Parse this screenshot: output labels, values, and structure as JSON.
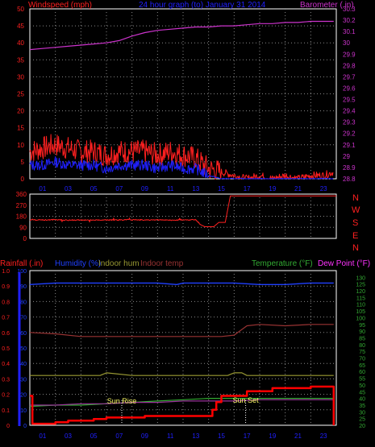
{
  "header": {
    "windspeed_label": "Windspeed (mph)",
    "title": "24 hour graph (to)   January 31 2014",
    "barometer_label": "Barometer (.in)"
  },
  "footer": {
    "rainfall_label": "Rainfall (.in)",
    "humidity_label": "Humidity (%)",
    "indoor_hum_label": "Indoor hum",
    "indoor_temp_label": "Indoor temp",
    "temperature_label": "Temperature (°F)",
    "dew_point_label": "Dew Point (°F)"
  },
  "annotations": {
    "sunrise": "Sun Rise",
    "sunset": "Sun Set"
  },
  "colors": {
    "windspeed": "#ff2020",
    "gust": "#ff0000",
    "avg_wind": "#2020ff",
    "barometer": "#cc33cc",
    "direction": "#ff2020",
    "humidity": "#2040ff",
    "indoor_hum": "#999933",
    "indoor_temp": "#993333",
    "temperature": "#33aa33",
    "dewpoint": "#993399",
    "rainfall": "#ff0000",
    "grid": "#888888"
  },
  "chart_data": [
    {
      "type": "line",
      "name": "wind-barometer",
      "x_ticks": [
        "01",
        "03",
        "05",
        "07",
        "09",
        "11",
        "13",
        "15",
        "17",
        "19",
        "21",
        "23"
      ],
      "xlim": [
        0,
        24
      ],
      "y_left": {
        "label": "Windspeed (mph)",
        "ylim": [
          0,
          50
        ],
        "ticks": [
          0,
          5,
          10,
          15,
          20,
          25,
          30,
          35,
          40,
          45,
          50
        ]
      },
      "y_right": {
        "label": "Barometer (.in)",
        "ylim": [
          28.8,
          30.3
        ],
        "ticks": [
          "28.8",
          "28.9",
          "29",
          "29.1",
          "29.2",
          "29.3",
          "29.4",
          "29.5",
          "29.6",
          "29.7",
          "29.8",
          "29.9",
          "30",
          "30.1",
          "30.2",
          "30.3"
        ]
      },
      "series": [
        {
          "key": "barometer",
          "axis": "right",
          "x": [
            0,
            1,
            2,
            3,
            4,
            5,
            6,
            7,
            8,
            9,
            10,
            11,
            12,
            13,
            14,
            15,
            16,
            17,
            18,
            19,
            20,
            21,
            22,
            23,
            23.8
          ],
          "y": [
            29.94,
            29.95,
            29.96,
            29.97,
            29.98,
            29.99,
            30.0,
            30.02,
            30.06,
            30.09,
            30.11,
            30.12,
            30.13,
            30.14,
            30.14,
            30.15,
            30.15,
            30.16,
            30.17,
            30.17,
            30.18,
            30.18,
            30.19,
            30.19,
            30.19
          ]
        },
        {
          "key": "gust",
          "axis": "left",
          "x": [
            0,
            1,
            2,
            3,
            4,
            5,
            6,
            7,
            8,
            9,
            10,
            11,
            12,
            13,
            14,
            15,
            16,
            17,
            18,
            19,
            20,
            21,
            22,
            23,
            23.8
          ],
          "y": [
            8,
            9,
            10,
            9,
            8,
            8,
            7,
            8,
            8,
            8,
            7,
            8,
            7,
            6,
            3,
            2,
            1,
            0,
            1,
            0,
            1,
            0,
            1,
            1,
            2
          ]
        },
        {
          "key": "avg_wind",
          "axis": "left",
          "x": [
            0,
            1,
            2,
            3,
            4,
            5,
            6,
            7,
            8,
            9,
            10,
            11,
            12,
            13,
            14,
            15,
            16,
            17,
            18,
            19,
            20,
            21,
            22,
            23,
            23.8
          ],
          "y": [
            4,
            4,
            5,
            4,
            4,
            4,
            3,
            4,
            4,
            4,
            3,
            4,
            3,
            3,
            1,
            0,
            0,
            0,
            0,
            0,
            0,
            0,
            0,
            0,
            0
          ]
        }
      ]
    },
    {
      "type": "line",
      "name": "wind-direction",
      "xlim": [
        0,
        24
      ],
      "y_left": {
        "ylim": [
          0,
          360
        ],
        "ticks": [
          0,
          90,
          180,
          270,
          360
        ]
      },
      "y_right_labels": [
        "N",
        "W",
        "S",
        "E",
        "N"
      ],
      "series": [
        {
          "key": "direction",
          "x": [
            0,
            1,
            2,
            3,
            4,
            5,
            6,
            7,
            8,
            9,
            10,
            11,
            12,
            13,
            13.4,
            13.7,
            14.4,
            14.8,
            15.3,
            15.7,
            24
          ],
          "y": [
            150,
            150,
            152,
            148,
            150,
            148,
            150,
            150,
            152,
            150,
            150,
            148,
            150,
            152,
            110,
            95,
            95,
            130,
            130,
            345,
            345
          ]
        }
      ]
    },
    {
      "type": "line",
      "name": "temperature-rain-humidity",
      "x_ticks": [
        "01",
        "03",
        "05",
        "07",
        "09",
        "11",
        "13",
        "15",
        "17",
        "19",
        "21",
        "23"
      ],
      "xlim": [
        0,
        24
      ],
      "y_left": {
        "label": "Rainfall (.in)",
        "ylim": [
          0,
          1.0
        ],
        "ticks": [
          "0",
          "0.1",
          "0.2",
          "0.3",
          "0.4",
          "0.5",
          "0.6",
          "0.7",
          "0.8",
          "0.9",
          "1.0"
        ]
      },
      "y_humidity": {
        "label": "Humidity (%)",
        "ylim": [
          0,
          100
        ],
        "ticks": [
          0,
          10,
          20,
          30,
          40,
          50,
          60,
          70,
          80,
          90,
          100
        ]
      },
      "y_right": {
        "label": "Temperature (°F)",
        "ylim": [
          20,
          135
        ],
        "ticks": [
          20,
          25,
          30,
          35,
          40,
          45,
          50,
          55,
          60,
          65,
          70,
          75,
          80,
          85,
          90,
          95,
          100,
          105,
          110,
          115,
          120,
          125,
          130
        ]
      },
      "series": [
        {
          "key": "humidity",
          "axis": "humidity",
          "x": [
            0,
            2,
            4,
            6,
            8,
            10,
            11.5,
            12,
            14,
            16,
            18,
            20,
            22,
            23.8
          ],
          "y": [
            91,
            92,
            92,
            92,
            92,
            92,
            91,
            92,
            92,
            92,
            91,
            91,
            92,
            92
          ]
        },
        {
          "key": "indoor_temp",
          "axis": "right",
          "x": [
            0,
            2,
            4,
            6,
            8,
            10,
            12,
            14,
            15,
            16,
            17,
            18,
            20,
            22,
            23.8
          ],
          "y": [
            89,
            88,
            86,
            86,
            86,
            86,
            86,
            86,
            86,
            87,
            94,
            95,
            94,
            95,
            95
          ]
        },
        {
          "key": "indoor_hum",
          "axis": "right",
          "x": [
            0,
            4.5,
            5,
            5.5,
            6,
            6,
            8,
            10,
            12,
            14,
            15.5,
            16,
            16.6,
            17,
            18,
            20,
            22,
            23.8
          ],
          "y": [
            57,
            57,
            57,
            57,
            59,
            59,
            57,
            57,
            57,
            57,
            57,
            59,
            59,
            57,
            57,
            57,
            57,
            57
          ]
        },
        {
          "key": "temperature",
          "axis": "right",
          "x": [
            0,
            2,
            4,
            6,
            8,
            10,
            12,
            14,
            16,
            18,
            20,
            22,
            23.8
          ],
          "y": [
            34,
            35,
            35,
            36,
            37,
            38,
            39,
            40,
            40,
            40,
            40,
            40,
            40
          ]
        },
        {
          "key": "dewpoint",
          "axis": "right",
          "x": [
            0,
            2,
            4,
            6,
            8,
            10,
            12,
            14,
            16,
            18,
            20,
            22,
            23.8
          ],
          "y": [
            35,
            35,
            36,
            36,
            37,
            37,
            38,
            38,
            38,
            39,
            39,
            39,
            39
          ]
        },
        {
          "key": "rainfall",
          "axis": "left",
          "x": [
            0,
            0.2,
            1.5,
            2,
            3,
            4,
            5,
            6,
            7,
            8,
            9,
            10,
            11,
            12,
            13,
            14,
            14.3,
            14.6,
            15,
            16,
            17,
            18,
            19,
            20,
            21,
            22,
            23,
            23.7,
            23.8
          ],
          "y": [
            0.19,
            0.01,
            0.01,
            0.02,
            0.03,
            0.03,
            0.04,
            0.05,
            0.05,
            0.05,
            0.06,
            0.06,
            0.06,
            0.06,
            0.06,
            0.06,
            0.1,
            0.15,
            0.19,
            0.19,
            0.22,
            0.22,
            0.24,
            0.24,
            0.24,
            0.25,
            0.25,
            0.25,
            0.0
          ]
        }
      ],
      "markers": [
        {
          "key": "sunrise",
          "x": 7.2
        },
        {
          "key": "sunset",
          "x": 16.9
        }
      ]
    }
  ]
}
